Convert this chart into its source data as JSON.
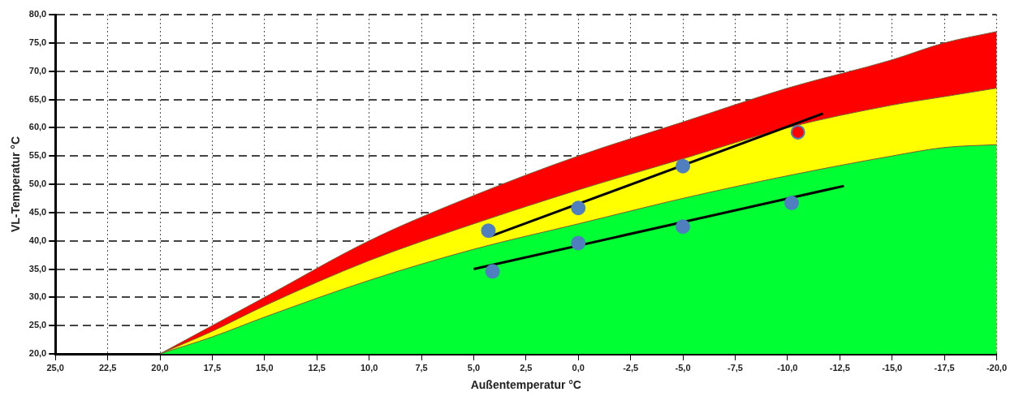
{
  "chart_data": {
    "type": "area",
    "xlabel": "Außentemperatur °C",
    "ylabel": "VL-Temperatur °C",
    "xlim": [
      25,
      -20
    ],
    "ylim": [
      20,
      80
    ],
    "xticks": [
      {
        "value": 25,
        "label": "25,0"
      },
      {
        "value": 22.5,
        "label": "22,5"
      },
      {
        "value": 20,
        "label": "20,0"
      },
      {
        "value": 17.5,
        "label": "17,5"
      },
      {
        "value": 15,
        "label": "15,0"
      },
      {
        "value": 12.5,
        "label": "12,5"
      },
      {
        "value": 10,
        "label": "10,0"
      },
      {
        "value": 7.5,
        "label": "7,5"
      },
      {
        "value": 5,
        "label": "5,0"
      },
      {
        "value": 2.5,
        "label": "2,5"
      },
      {
        "value": 0,
        "label": "0,0"
      },
      {
        "value": -2.5,
        "label": "-2,5"
      },
      {
        "value": -5,
        "label": "-5,0"
      },
      {
        "value": -7.5,
        "label": "-7,5"
      },
      {
        "value": -10,
        "label": "-10,0"
      },
      {
        "value": -12.5,
        "label": "-12,5"
      },
      {
        "value": -15,
        "label": "-15,0"
      },
      {
        "value": -17.5,
        "label": "-17,5"
      },
      {
        "value": -20,
        "label": "-20,0"
      }
    ],
    "yticks": [
      {
        "value": 20,
        "label": "20,0"
      },
      {
        "value": 25,
        "label": "25,0"
      },
      {
        "value": 30,
        "label": "30,0"
      },
      {
        "value": 35,
        "label": "35,0"
      },
      {
        "value": 40,
        "label": "40,0"
      },
      {
        "value": 45,
        "label": "45,0"
      },
      {
        "value": 50,
        "label": "50,0"
      },
      {
        "value": 55,
        "label": "55,0"
      },
      {
        "value": 60,
        "label": "60,0"
      },
      {
        "value": 65,
        "label": "65,0"
      },
      {
        "value": 70,
        "label": "70,0"
      },
      {
        "value": 75,
        "label": "75,0"
      },
      {
        "value": 80,
        "label": "80,0"
      }
    ],
    "grid": true,
    "series": [
      {
        "color": "#ff0000",
        "x": [
          20,
          17.5,
          15,
          10,
          5,
          0,
          -5,
          -10,
          -15,
          -17.5,
          -20
        ],
        "values": [
          20,
          25,
          30,
          40,
          48,
          55,
          61,
          67,
          72,
          75,
          77
        ]
      },
      {
        "color": "#ffff00",
        "x": [
          20,
          17.5,
          15,
          10,
          5,
          0,
          -5,
          -10,
          -15,
          -17.5,
          -20
        ],
        "values": [
          20,
          24,
          28.5,
          36.5,
          43,
          49,
          54.5,
          60,
          64,
          65.5,
          67
        ]
      },
      {
        "color": "#00ff33",
        "x": [
          20,
          17.5,
          15,
          10,
          5,
          0,
          -5,
          -10,
          -15,
          -17.5,
          -20
        ],
        "values": [
          20,
          23,
          26.5,
          33,
          38.5,
          43,
          47.5,
          51.5,
          55,
          56.5,
          57
        ]
      },
      {
        "type": "line",
        "color": "#000000",
        "x": [
          4.2,
          -11.7
        ],
        "values": [
          40.8,
          62.5
        ]
      },
      {
        "type": "line",
        "color": "#000000",
        "x": [
          5,
          -12.7
        ],
        "values": [
          35,
          49.7
        ]
      },
      {
        "type": "scatter",
        "color": "#4f7fbf",
        "colors": [
          "#4f7fbf",
          "#4f7fbf",
          "#4f7fbf",
          "#ff0000",
          "#4f7fbf",
          "#4f7fbf",
          "#4f7fbf",
          "#4f7fbf"
        ],
        "x": [
          4.3,
          0,
          -5,
          -10.5,
          4.1,
          0,
          -5,
          -10.2
        ],
        "values": [
          41.8,
          45.8,
          53.2,
          59.2,
          34.6,
          39.6,
          42.5,
          46.7
        ]
      }
    ]
  }
}
